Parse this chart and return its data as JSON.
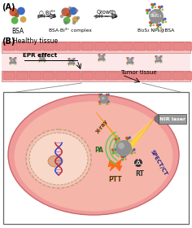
{
  "fig_width": 2.36,
  "fig_height": 2.8,
  "dpi": 100,
  "bg_color": "#ffffff",
  "panel_A_label": "(A)",
  "panel_B_label": "(B)",
  "bsa_label": "BSA",
  "complex_label": "BSA·Bi³⁺ complex",
  "nps_label": "Bi₂S₃ NPs@BSA",
  "arrow1_text1": "○ Bi³⁺",
  "arrow1_text2": "pH < 5",
  "arrow2_text1": "Growth",
  "arrow2_text2": "pH ∼ 12",
  "healthy_label": "Healthy tissue",
  "epr_label": "EPR effect",
  "tumor_label": "Tumor tissue",
  "pa_label": "PA",
  "ptt_label": "PTT",
  "rt_label": "RT",
  "spect_label": "SPECT/CT",
  "xray_label": "X-ray",
  "nir_label": "NIR laser",
  "vessel_fill": "#f5c5c5",
  "vessel_rect_fill": "#e89090",
  "vessel_lumen": "#fde8e8",
  "tumor_cell_fill": "#f09090",
  "tumor_cell_border": "#cc6060",
  "cell_inner_fill": "#f5b0a0",
  "nucleus_fill": "#f8d5c5",
  "nucleus_border": "#c89080",
  "box_bg": "#ffffff",
  "box_border": "#666666",
  "np_gray": "#909090",
  "np_highlight": "#c8c8c8",
  "xray_color": "#ffaa00",
  "nir_color": "#ff7700",
  "flame_color": "#ff6600",
  "pa_wave_color": "#55cc55",
  "dna_blue": "#2244cc",
  "dna_red": "#cc2222"
}
